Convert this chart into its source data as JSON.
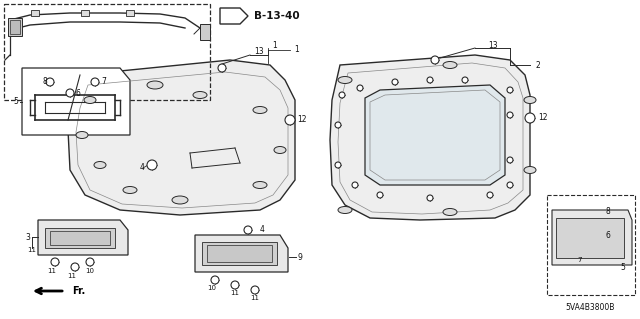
{
  "bg_color": "#ffffff",
  "line_color": "#2a2a2a",
  "text_color": "#111111",
  "ref_label": "B-13-40",
  "diagram_code": "5VA4B3800B",
  "figsize": [
    6.4,
    3.19
  ],
  "dpi": 100
}
